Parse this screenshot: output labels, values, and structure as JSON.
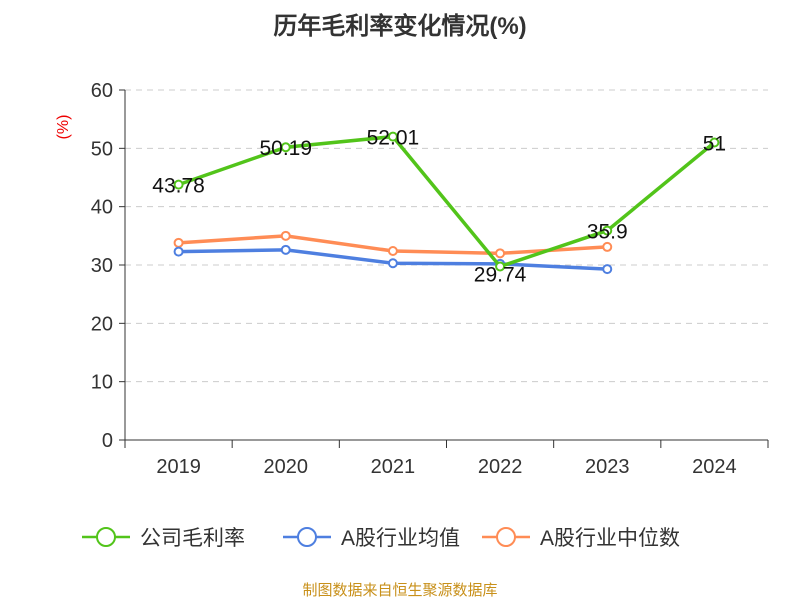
{
  "chart_data": {
    "type": "line",
    "title": "历年毛利率变化情况(%)",
    "ylabel": "(%)",
    "xlabel": "",
    "categories": [
      "2019",
      "2020",
      "2021",
      "2022",
      "2023",
      "2024"
    ],
    "ylim": [
      0,
      60
    ],
    "yticks": [
      "0",
      "10",
      "20",
      "30",
      "40",
      "50",
      "60"
    ],
    "grid": true,
    "legend_position": "bottom",
    "series": [
      {
        "name": "公司毛利率",
        "color": "#52c41a",
        "values": [
          43.78,
          50.19,
          52.01,
          29.74,
          35.9,
          51
        ],
        "labels": [
          "43.78",
          "50.19",
          "52.01",
          "29.74",
          "35.9",
          "51"
        ]
      },
      {
        "name": "A股行业均值",
        "color": "#4e7fe0",
        "values": [
          32.3,
          32.6,
          30.3,
          30.2,
          29.3,
          null
        ]
      },
      {
        "name": "A股行业中位数",
        "color": "#ff8c55",
        "values": [
          33.8,
          35.0,
          32.4,
          32.0,
          33.1,
          null
        ]
      }
    ],
    "source": "制图数据来自恒生聚源数据库"
  }
}
